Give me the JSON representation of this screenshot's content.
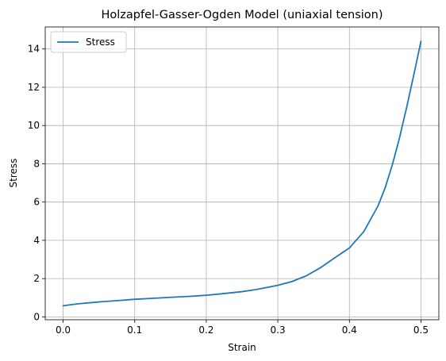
{
  "chart_data": {
    "type": "line",
    "title": "Holzapfel-Gasser-Ogden Model (uniaxial tension)",
    "xlabel": "Strain",
    "ylabel": "Stress",
    "xlim": [
      -0.025,
      0.525
    ],
    "ylim": [
      -0.15,
      15.15
    ],
    "xticks": [
      0.0,
      0.1,
      0.2,
      0.3,
      0.4,
      0.5
    ],
    "xtick_labels": [
      "0.0",
      "0.1",
      "0.2",
      "0.3",
      "0.4",
      "0.5"
    ],
    "yticks": [
      0,
      2,
      4,
      6,
      8,
      10,
      12,
      14
    ],
    "ytick_labels": [
      "0",
      "2",
      "4",
      "6",
      "8",
      "10",
      "12",
      "14"
    ],
    "grid": true,
    "legend_position": "top-left",
    "series": [
      {
        "name": "Stress",
        "color": "#1f77b4",
        "x": [
          0.0,
          0.02,
          0.05,
          0.08,
          0.1,
          0.12,
          0.15,
          0.18,
          0.2,
          0.22,
          0.25,
          0.27,
          0.3,
          0.32,
          0.34,
          0.36,
          0.38,
          0.4,
          0.42,
          0.44,
          0.45,
          0.46,
          0.47,
          0.48,
          0.49,
          0.5
        ],
        "y": [
          0.58,
          0.68,
          0.78,
          0.86,
          0.92,
          0.96,
          1.02,
          1.08,
          1.13,
          1.2,
          1.32,
          1.43,
          1.65,
          1.85,
          2.15,
          2.58,
          3.1,
          3.6,
          4.45,
          5.8,
          6.75,
          7.95,
          9.35,
          10.95,
          12.65,
          14.4
        ]
      }
    ]
  }
}
